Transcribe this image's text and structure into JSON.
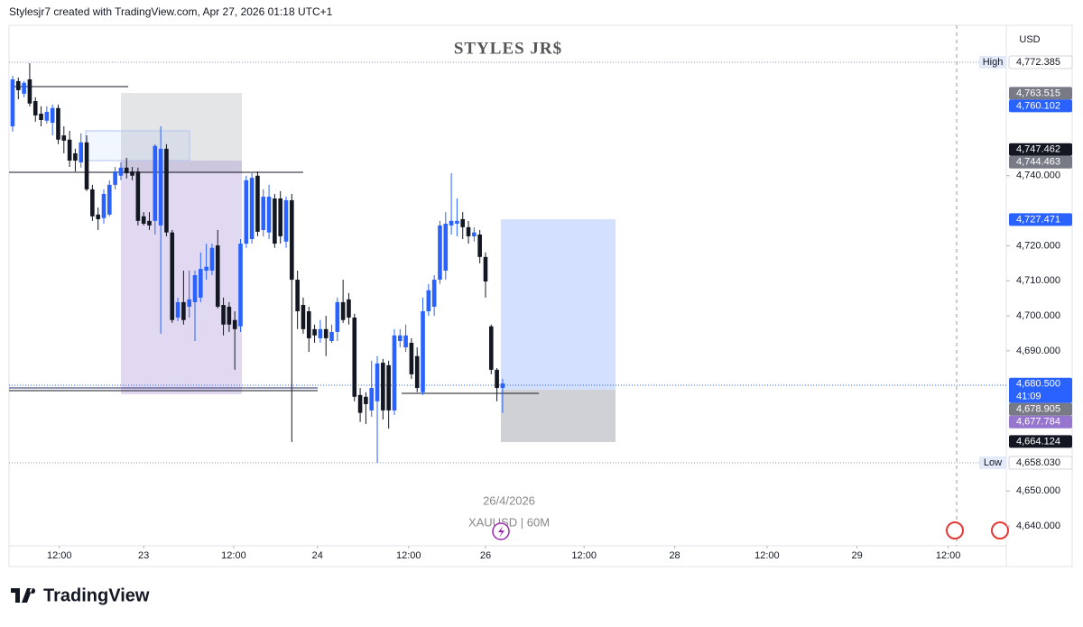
{
  "header": "Stylesjr7 created with TradingView.com, Apr 27, 2026 01:18 UTC+1",
  "footer": "TradingView",
  "chart_data": {
    "type": "candlestick",
    "title": "STYLES JR$",
    "watermark_date": "26/4/2026",
    "symbol": "XAUUSD | 60M",
    "currency": "USD",
    "up_color": "#2962ff",
    "down_color": "#131722",
    "ylim": [
      4634.35,
      4782.94
    ],
    "yticks": [
      {
        "value": 4640,
        "label": "4,640.000"
      },
      {
        "value": 4650,
        "label": "4,650.000"
      },
      {
        "value": 4690,
        "label": "4,690.000"
      },
      {
        "value": 4700,
        "label": "4,700.000"
      },
      {
        "value": 4710,
        "label": "4,710.000"
      },
      {
        "value": 4720,
        "label": "4,720.000"
      },
      {
        "value": 4740,
        "label": "4,740.000"
      }
    ],
    "xlim": [
      -0.63,
      174.4
    ],
    "xticks": [
      {
        "value": 8.2,
        "label": "12:00"
      },
      {
        "value": 23.0,
        "label": "23"
      },
      {
        "value": 38.8,
        "label": "12:00"
      },
      {
        "value": 53.5,
        "label": "24"
      },
      {
        "value": 69.5,
        "label": "12:00"
      },
      {
        "value": 83.0,
        "label": "26"
      },
      {
        "value": 100.3,
        "label": "12:00"
      },
      {
        "value": 116.2,
        "label": "28"
      },
      {
        "value": 132.4,
        "label": "12:00"
      },
      {
        "value": 148.2,
        "label": "29"
      },
      {
        "value": 164.2,
        "label": "12:00"
      }
    ],
    "open": [
      4754.1,
      4767.0,
      4763.4,
      4767.5,
      4761.3,
      4757.7,
      4755.7,
      4755.1,
      4759.3,
      4751.5,
      4750.3,
      4746.4,
      4743.8,
      4749.5,
      4736.1,
      4728.9,
      4727.9,
      4728.9,
      4737.4,
      4740.0,
      4742.3,
      4741.2,
      4741.2,
      4728.4,
      4727.1,
      4727.1,
      4725.8,
      4747.7,
      4723.8,
      4699.5,
      4703.9,
      4702.6,
      4703.9,
      4705.2,
      4712.9,
      4712.9,
      4720.1,
      4703.1,
      4702.6,
      4698.8,
      4697.0,
      4720.6,
      4721.9,
      4740.0,
      4724.5,
      4723.8,
      4733.5,
      4733.5,
      4721.2,
      4733.0,
      4710.3,
      4703.1,
      4701.3,
      4696.2,
      4693.6,
      4696.2,
      4692.8,
      4695.4,
      4703.9,
      4704.7,
      4699.5,
      4677.4,
      4676.9,
      4673.0,
      4675.6,
      4686.6,
      4685.9,
      4673.0,
      4692.8,
      4691.0,
      4692.3,
      4688.5,
      4678.2,
      4701.3,
      4702.6,
      4710.3,
      4712.9,
      4725.8,
      4726.3,
      4727.6,
      4725.3,
      4722.7,
      4723.2,
      4716.8,
      4697.0,
      4684.6,
      4679.4
    ],
    "high": [
      4768.5,
      4768.0,
      4767.0,
      4772.1,
      4762.4,
      4759.8,
      4759.8,
      4760.3,
      4760.3,
      4754.1,
      4752.8,
      4747.7,
      4752.1,
      4751.5,
      4737.4,
      4730.9,
      4736.1,
      4738.7,
      4742.5,
      4743.8,
      4745.1,
      4742.5,
      4742.3,
      4729.6,
      4729.6,
      4749.0,
      4754.1,
      4749.0,
      4724.5,
      4705.2,
      4712.9,
      4712.9,
      4712.9,
      4718.1,
      4720.6,
      4720.6,
      4724.5,
      4705.2,
      4703.9,
      4701.3,
      4721.9,
      4740.0,
      4740.7,
      4741.2,
      4736.1,
      4737.4,
      4734.8,
      4735.6,
      4734.0,
      4734.8,
      4712.9,
      4705.2,
      4702.6,
      4697.5,
      4698.8,
      4700.0,
      4697.5,
      4705.2,
      4710.3,
      4706.5,
      4700.6,
      4679.4,
      4678.2,
      4687.2,
      4688.5,
      4687.7,
      4687.2,
      4696.2,
      4696.2,
      4697.5,
      4693.6,
      4691.0,
      4705.2,
      4709.1,
      4711.6,
      4727.1,
      4729.6,
      4740.7,
      4733.5,
      4729.6,
      4727.1,
      4725.3,
      4724.5,
      4718.1,
      4697.5,
      4685.1,
      4682.0
    ],
    "low": [
      4752.6,
      4761.8,
      4762.4,
      4759.8,
      4755.4,
      4754.1,
      4754.9,
      4751.5,
      4749.0,
      4746.4,
      4742.5,
      4741.2,
      4742.3,
      4735.6,
      4727.1,
      4724.5,
      4726.3,
      4728.4,
      4736.1,
      4738.7,
      4739.2,
      4738.7,
      4725.8,
      4725.8,
      4724.5,
      4723.2,
      4694.9,
      4722.7,
      4698.0,
      4698.5,
      4697.5,
      4699.5,
      4692.8,
      4703.9,
      4710.3,
      4711.6,
      4702.1,
      4694.4,
      4695.4,
      4684.6,
      4695.4,
      4719.4,
      4720.6,
      4722.7,
      4722.7,
      4721.9,
      4719.4,
      4720.6,
      4719.4,
      4664.0,
      4696.2,
      4694.9,
      4689.7,
      4692.3,
      4692.3,
      4688.5,
      4692.3,
      4692.8,
      4698.0,
      4697.5,
      4675.6,
      4669.7,
      4669.1,
      4671.2,
      4658.0,
      4670.4,
      4667.8,
      4671.7,
      4691.0,
      4689.7,
      4682.0,
      4678.2,
      4677.4,
      4700.0,
      4700.0,
      4709.1,
      4710.3,
      4723.2,
      4722.7,
      4721.9,
      4720.6,
      4721.2,
      4715.0,
      4705.2,
      4683.3,
      4675.6,
      4672.3
    ],
    "close": [
      4767.5,
      4764.4,
      4766.5,
      4760.6,
      4757.2,
      4755.9,
      4758.2,
      4759.3,
      4750.3,
      4750.0,
      4744.3,
      4744.3,
      4749.5,
      4736.1,
      4728.4,
      4727.6,
      4734.8,
      4737.4,
      4741.2,
      4742.3,
      4740.7,
      4740.0,
      4727.1,
      4726.3,
      4725.8,
      4748.5,
      4747.7,
      4723.8,
      4698.8,
      4703.9,
      4698.8,
      4704.7,
      4711.6,
      4713.4,
      4714.0,
      4719.4,
      4702.6,
      4697.5,
      4697.5,
      4696.2,
      4720.6,
      4738.7,
      4739.4,
      4724.0,
      4734.0,
      4734.0,
      4720.6,
      4722.7,
      4733.0,
      4710.3,
      4701.3,
      4696.2,
      4693.6,
      4694.4,
      4696.2,
      4693.6,
      4695.4,
      4703.9,
      4698.8,
      4699.5,
      4676.9,
      4672.3,
      4674.8,
      4679.4,
      4686.4,
      4673.0,
      4673.0,
      4694.4,
      4694.4,
      4694.4,
      4683.3,
      4679.4,
      4701.3,
      4707.3,
      4710.3,
      4725.8,
      4726.3,
      4727.1,
      4727.1,
      4725.3,
      4722.7,
      4723.8,
      4716.8,
      4709.8,
      4684.6,
      4679.4,
      4680.7
    ],
    "high_label": "High",
    "low_label": "Low",
    "countdown": "41:09",
    "price_labels": [
      {
        "value": 4772.385,
        "label": "4,772.385",
        "color": "#ffffff"
      },
      {
        "value": 4763.515,
        "label": "4,763.515",
        "color": "#787b86"
      },
      {
        "value": 4760.102,
        "label": "4,760.102",
        "color": "#2962ff"
      },
      {
        "value": 4747.462,
        "label": "4,747.462",
        "color": "#131722"
      },
      {
        "value": 4744.463,
        "label": "4,744.463",
        "color": "#787b86"
      },
      {
        "value": 4727.471,
        "label": "4,727.471",
        "color": "#2962ff"
      },
      {
        "value": 4680.5,
        "label": "4,680.500",
        "color": "#2962ff"
      },
      {
        "value": 4678.905,
        "label": "4,678.905",
        "color": "#787b86"
      },
      {
        "value": 4677.784,
        "label": "4,677.784",
        "color": "#9575cd"
      },
      {
        "value": 4664.124,
        "label": "4,664.124",
        "color": "#131722"
      },
      {
        "value": 4658.03,
        "label": "4,658.030",
        "color": "#ffffff"
      }
    ]
  }
}
